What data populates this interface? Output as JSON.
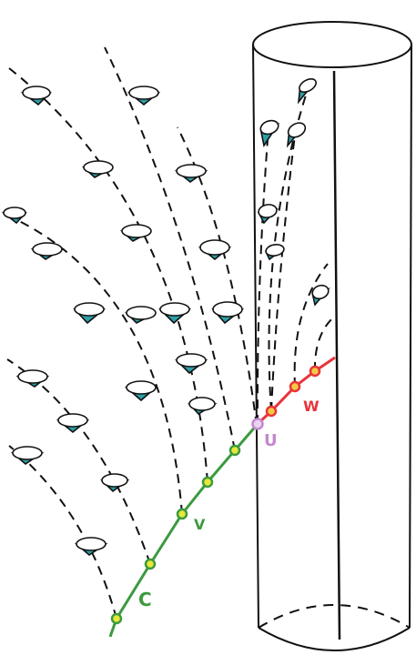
{
  "colors": {
    "curve_c": "#3c9a3e",
    "curve_w": "#e8343a",
    "point_fill_c": "#e8e83a",
    "point_fill_w": "#f5c842",
    "point_u": "#c389cf",
    "cone_fill": "#2e9fa6",
    "ink": "#111111"
  },
  "labels": {
    "c": "C",
    "v": "V",
    "w": "W",
    "u": "U"
  },
  "icons": {
    "cone": "light-cone-icon",
    "point": "event-point-icon"
  }
}
